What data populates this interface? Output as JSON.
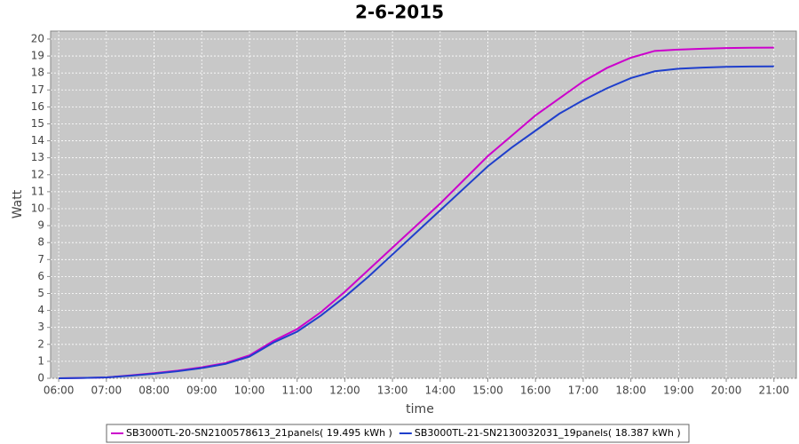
{
  "chart_data": {
    "type": "line",
    "title": "2-6-2015",
    "x_label": "time",
    "y_label": "Watt",
    "x": [
      6,
      6.5,
      7,
      7.5,
      8,
      8.5,
      9,
      9.5,
      10,
      10.5,
      11,
      11.5,
      12,
      12.5,
      13,
      13.5,
      14,
      14.5,
      15,
      15.5,
      16,
      16.5,
      17,
      17.5,
      18,
      18.5,
      19,
      19.5,
      20,
      20.5,
      21
    ],
    "series": [
      {
        "name": "SB3000TL-20-SN2100578613_21panels( 19.495 kWh )",
        "color": "#cc00cc",
        "values": [
          0,
          0.02,
          0.05,
          0.17,
          0.3,
          0.45,
          0.65,
          0.9,
          1.35,
          2.2,
          2.9,
          3.9,
          5.1,
          6.4,
          7.7,
          9.0,
          10.3,
          11.7,
          13.1,
          14.3,
          15.5,
          16.5,
          17.5,
          18.3,
          18.9,
          19.3,
          19.38,
          19.43,
          19.47,
          19.49,
          19.495
        ]
      },
      {
        "name": "SB3000TL-21-SN2130032031_19panels( 18.387 kWh )",
        "color": "#1f3fcc",
        "values": [
          0,
          0.02,
          0.05,
          0.15,
          0.27,
          0.42,
          0.6,
          0.85,
          1.28,
          2.1,
          2.75,
          3.7,
          4.8,
          6.0,
          7.3,
          8.6,
          9.9,
          11.2,
          12.5,
          13.6,
          14.6,
          15.6,
          16.4,
          17.1,
          17.7,
          18.1,
          18.25,
          18.32,
          18.36,
          18.38,
          18.387
        ]
      }
    ],
    "xlim": [
      5.83,
      21.47
    ],
    "ylim": [
      0,
      20.47
    ],
    "xticks": [
      {
        "value": 6,
        "label": "06:00"
      },
      {
        "value": 7,
        "label": "07:00"
      },
      {
        "value": 8,
        "label": "08:00"
      },
      {
        "value": 9,
        "label": "09:00"
      },
      {
        "value": 10,
        "label": "10:00"
      },
      {
        "value": 11,
        "label": "11:00"
      },
      {
        "value": 12,
        "label": "12:00"
      },
      {
        "value": 13,
        "label": "13:00"
      },
      {
        "value": 14,
        "label": "14:00"
      },
      {
        "value": 15,
        "label": "15:00"
      },
      {
        "value": 16,
        "label": "16:00"
      },
      {
        "value": 17,
        "label": "17:00"
      },
      {
        "value": 18,
        "label": "18:00"
      },
      {
        "value": 19,
        "label": "19:00"
      },
      {
        "value": 20,
        "label": "20:00"
      },
      {
        "value": 21,
        "label": "21:00"
      }
    ],
    "yticks": [
      0,
      1,
      2,
      3,
      4,
      5,
      6,
      7,
      8,
      9,
      10,
      11,
      12,
      13,
      14,
      15,
      16,
      17,
      18,
      19,
      20
    ],
    "grid": true
  }
}
